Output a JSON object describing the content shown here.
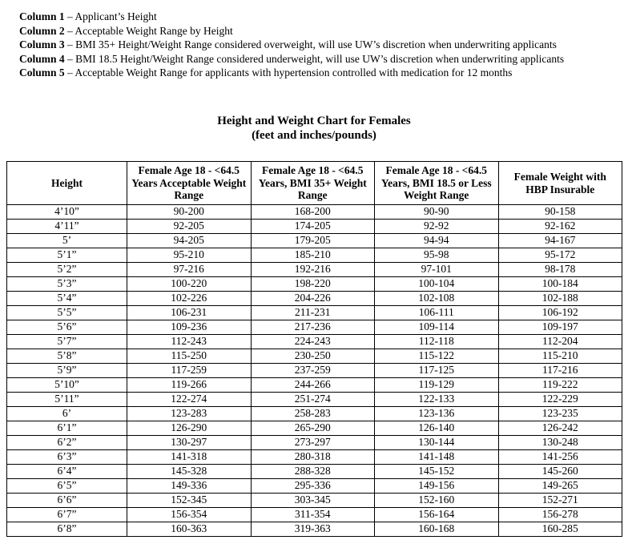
{
  "legend": {
    "items": [
      {
        "label": "Column 1",
        "text": "– Applicant’s Height"
      },
      {
        "label": "Column 2",
        "text": "– Acceptable Weight Range by Height"
      },
      {
        "label": "Column 3",
        "text": "– BMI 35+ Height/Weight Range considered overweight, will use UW’s discretion when underwriting applicants"
      },
      {
        "label": "Column 4",
        "text": "– BMI 18.5 Height/Weight Range considered underweight, will use UW’s discretion when underwriting applicants"
      },
      {
        "label": "Column 5",
        "text": "– Acceptable Weight Range for applicants with hypertension controlled with medication for 12 months"
      }
    ]
  },
  "title": {
    "main": "Height and Weight Chart for Females",
    "sub": "(feet and inches/pounds)"
  },
  "table": {
    "headers": [
      "Height",
      "Female Age 18 - <64.5 Years Acceptable Weight Range",
      "Female Age 18 - <64.5 Years, BMI 35+ Weight Range",
      "Female Age 18 - <64.5 Years, BMI 18.5 or Less Weight Range",
      "Female Weight with HBP Insurable"
    ],
    "rows": [
      [
        "4’10”",
        "90-200",
        "168-200",
        "90-90",
        "90-158"
      ],
      [
        "4’11”",
        "92-205",
        "174-205",
        "92-92",
        "92-162"
      ],
      [
        "5’",
        "94-205",
        "179-205",
        "94-94",
        "94-167"
      ],
      [
        "5’1”",
        "95-210",
        "185-210",
        "95-98",
        "95-172"
      ],
      [
        "5’2”",
        "97-216",
        "192-216",
        "97-101",
        "98-178"
      ],
      [
        "5’3”",
        "100-220",
        "198-220",
        "100-104",
        "100-184"
      ],
      [
        "5’4”",
        "102-226",
        "204-226",
        "102-108",
        "102-188"
      ],
      [
        "5’5”",
        "106-231",
        "211-231",
        "106-111",
        "106-192"
      ],
      [
        "5’6”",
        "109-236",
        "217-236",
        "109-114",
        "109-197"
      ],
      [
        "5’7”",
        "112-243",
        "224-243",
        "112-118",
        "112-204"
      ],
      [
        "5’8”",
        "115-250",
        "230-250",
        "115-122",
        "115-210"
      ],
      [
        "5’9”",
        "117-259",
        "237-259",
        "117-125",
        "117-216"
      ],
      [
        "5’10”",
        "119-266",
        "244-266",
        "119-129",
        "119-222"
      ],
      [
        "5’11”",
        "122-274",
        "251-274",
        "122-133",
        "122-229"
      ],
      [
        "6’",
        "123-283",
        "258-283",
        "123-136",
        "123-235"
      ],
      [
        "6’1”",
        "126-290",
        "265-290",
        "126-140",
        "126-242"
      ],
      [
        "6’2”",
        "130-297",
        "273-297",
        "130-144",
        "130-248"
      ],
      [
        "6’3”",
        "141-318",
        "280-318",
        "141-148",
        "141-256"
      ],
      [
        "6’4”",
        "145-328",
        "288-328",
        "145-152",
        "145-260"
      ],
      [
        "6’5”",
        "149-336",
        "295-336",
        "149-156",
        "149-265"
      ],
      [
        "6’6”",
        "152-345",
        "303-345",
        "152-160",
        "152-271"
      ],
      [
        "6’7”",
        "156-354",
        "311-354",
        "156-164",
        "156-278"
      ],
      [
        "6’8”",
        "160-363",
        "319-363",
        "160-168",
        "160-285"
      ]
    ]
  }
}
